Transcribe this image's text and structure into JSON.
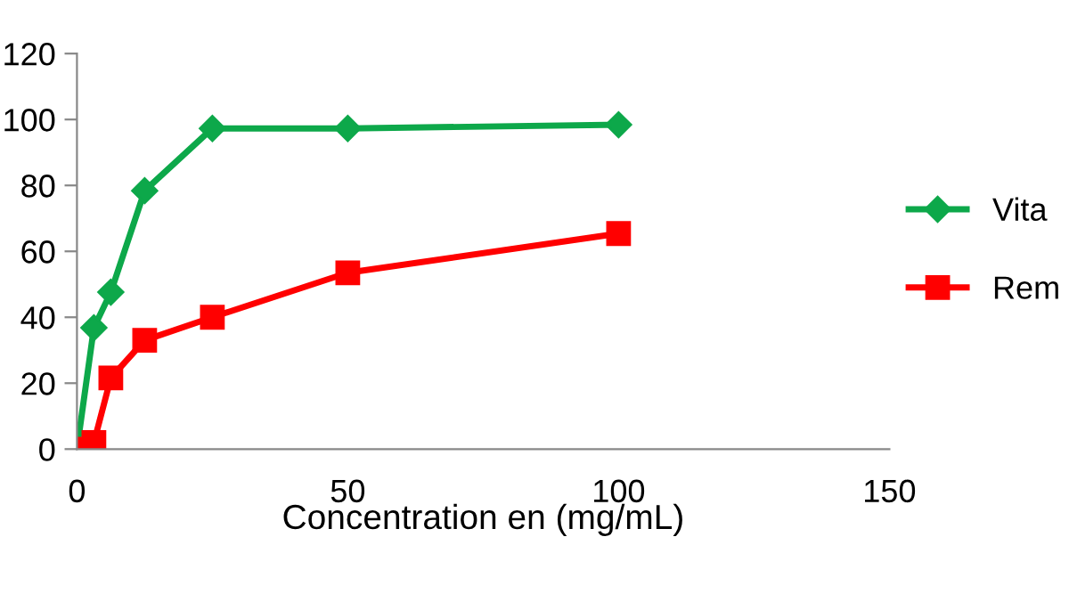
{
  "chart_data": {
    "type": "line",
    "xlabel": "Concentration en (mg/mL)",
    "x": [
      0,
      3.125,
      6.25,
      12.5,
      25,
      50,
      100
    ],
    "series": [
      {
        "name": "Vita",
        "color": "#0da84a",
        "marker": "diamond",
        "values": [
          0,
          36.8,
          47.6,
          78.4,
          97.3,
          97.3,
          98.4
        ]
      },
      {
        "name": "Rem",
        "color": "#ff0000",
        "marker": "square",
        "values": [
          0,
          2,
          21.6,
          33,
          40,
          53.5,
          65.4
        ]
      }
    ],
    "xlim": [
      0,
      150
    ],
    "xticks": [
      0,
      50,
      100,
      150
    ],
    "ylim": [
      0,
      120
    ],
    "yticks": [
      0,
      20,
      40,
      60,
      80,
      100,
      120
    ],
    "grid": false,
    "legend": "right",
    "line_style": "solid"
  }
}
